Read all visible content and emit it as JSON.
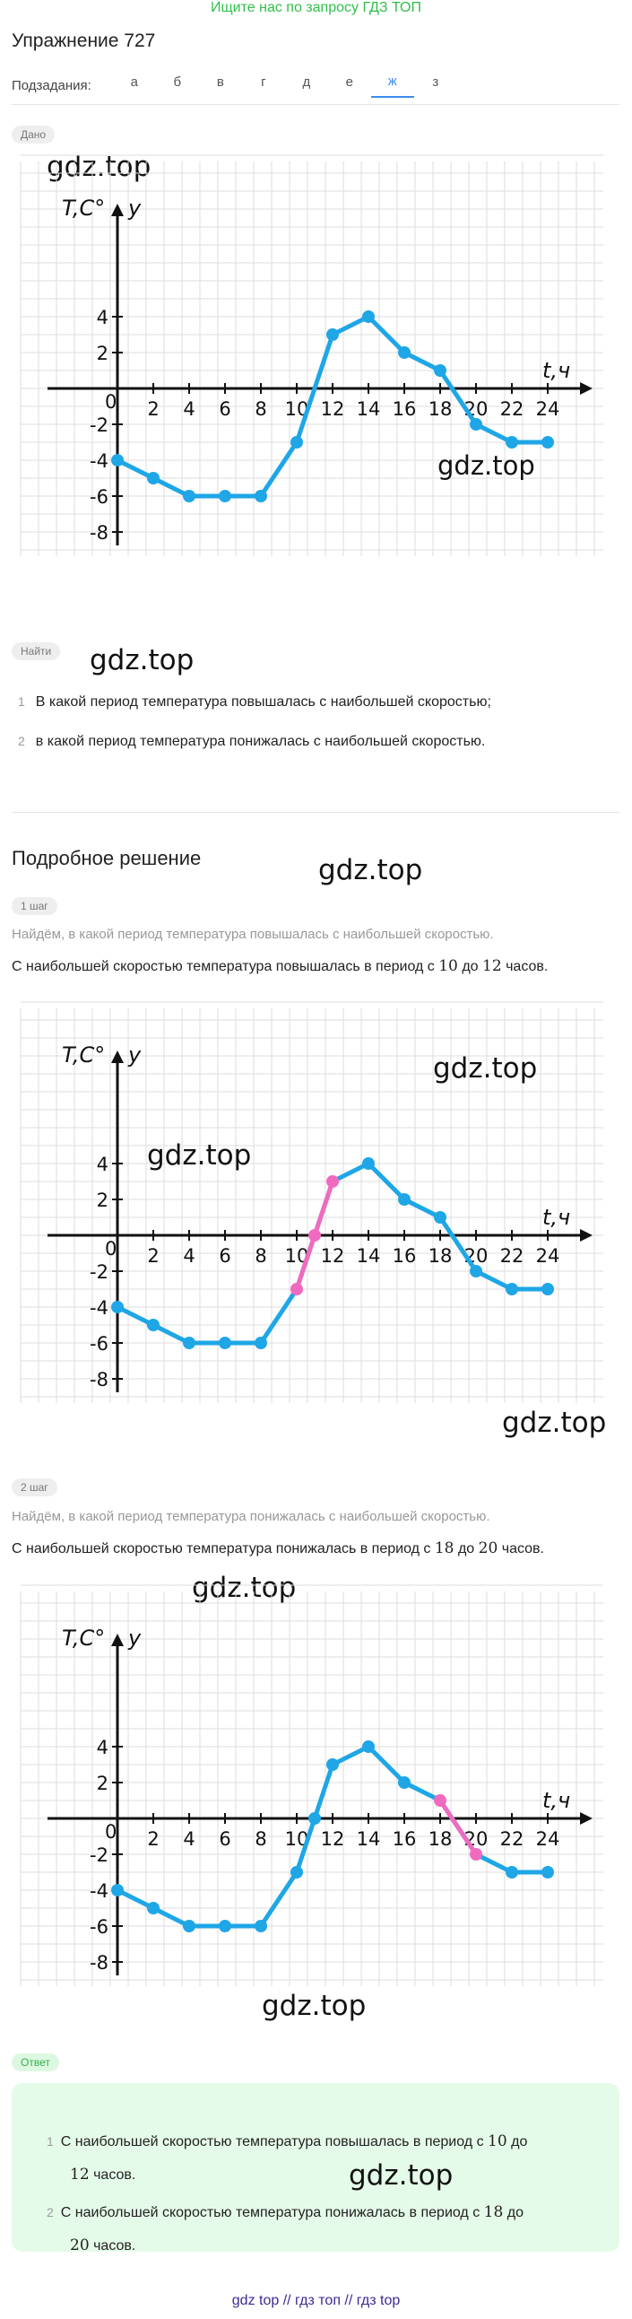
{
  "banner": "Ищите нас по запросу ГДЗ ТОП",
  "title": "Упражнение 727",
  "subtasks": {
    "label": "Подзадания:",
    "items": [
      "а",
      "б",
      "в",
      "г",
      "д",
      "е",
      "ж",
      "з"
    ],
    "active": "ж"
  },
  "given": {
    "pill": "Дано"
  },
  "find": {
    "pill": "Найти",
    "items": [
      {
        "n": "1",
        "text": "В какой период температура повышалась с наибольшей скоростью;"
      },
      {
        "n": "2",
        "text": "в какой период температура понижалась с наибольшей скоростью."
      }
    ]
  },
  "solution": {
    "title": "Подробное решение",
    "step1": {
      "pill": "1 шаг",
      "note": "Найдём, в какой период температура повышалась с наибольшей скоростью.",
      "statement_a": "С наибольшей скоростью температура повышалась в период с",
      "n1": "10",
      "mid": "до",
      "n2": "12",
      "tail": "часов."
    },
    "step2": {
      "pill": "2 шаг",
      "note": "Найдём, в какой период температура понижалась с наибольшей скоростью.",
      "statement_a": "С наибольшей скоростью температура понижалась в период с",
      "n1": "18",
      "mid": "до",
      "n2": "20",
      "tail": "часов."
    }
  },
  "answer": {
    "pill": "Ответ",
    "items": [
      {
        "n": "1",
        "text_a": "С наибольшей скоростью температура повышалась в период с",
        "n1": "10",
        "mid": "до",
        "n2": "12",
        "tail": "часов."
      },
      {
        "n": "2",
        "text_a": "С наибольшей скоростью температура понижалась в период с",
        "n1": "18",
        "mid": "до",
        "n2": "20",
        "tail": "часов."
      }
    ]
  },
  "watermark": "gdz.top",
  "footer": "gdz top // гдз топ // гдз top",
  "colors": {
    "line": "#1fa6e6",
    "highlight": "#f06bbf",
    "grid": "#dedede",
    "accent": "#3d8cf0",
    "green": "#2fbf4a"
  },
  "chart_data": [
    {
      "type": "line",
      "ylabel": "T,C°",
      "yname": "y",
      "xlabel": "t,ч",
      "x": [
        0,
        2,
        4,
        6,
        8,
        10,
        12,
        14,
        16,
        18,
        20,
        22,
        24
      ],
      "values": [
        -4,
        -5,
        -6,
        -6,
        -6,
        -3,
        3,
        4,
        2,
        1,
        -2,
        -3,
        -3
      ],
      "xticks": [
        "2",
        "4",
        "6",
        "8",
        "10",
        "12",
        "14",
        "16",
        "18",
        "20",
        "22",
        "24"
      ],
      "yticks": [
        "4",
        "2",
        "-2",
        "-4",
        "-6",
        "-8"
      ],
      "origin_label": "0",
      "xlim": [
        0,
        24
      ],
      "ylim": [
        -8,
        4
      ],
      "grid": true,
      "highlight": null
    },
    {
      "type": "line",
      "ylabel": "T,C°",
      "yname": "y",
      "xlabel": "t,ч",
      "x": [
        0,
        2,
        4,
        6,
        8,
        10,
        11,
        12,
        14,
        16,
        18,
        20,
        22,
        24
      ],
      "values": [
        -4,
        -5,
        -6,
        -6,
        -6,
        -3,
        0,
        3,
        4,
        2,
        1,
        -2,
        -3,
        -3
      ],
      "xticks": [
        "2",
        "4",
        "6",
        "8",
        "10",
        "12",
        "14",
        "16",
        "18",
        "20",
        "22",
        "24"
      ],
      "yticks": [
        "4",
        "2",
        "-2",
        "-4",
        "-6",
        "-8"
      ],
      "origin_label": "0",
      "xlim": [
        0,
        24
      ],
      "ylim": [
        -8,
        4
      ],
      "grid": true,
      "highlight": [
        10,
        12
      ]
    },
    {
      "type": "line",
      "ylabel": "T,C°",
      "yname": "y",
      "xlabel": "t,ч",
      "x": [
        0,
        2,
        4,
        6,
        8,
        10,
        11,
        12,
        14,
        16,
        18,
        20,
        22,
        24
      ],
      "values": [
        -4,
        -5,
        -6,
        -6,
        -6,
        -3,
        0,
        3,
        4,
        2,
        1,
        -2,
        -3,
        -3
      ],
      "xticks": [
        "2",
        "4",
        "6",
        "8",
        "10",
        "12",
        "14",
        "16",
        "18",
        "20",
        "22",
        "24"
      ],
      "yticks": [
        "4",
        "2",
        "-2",
        "-4",
        "-6",
        "-8"
      ],
      "origin_label": "0",
      "xlim": [
        0,
        24
      ],
      "ylim": [
        -8,
        4
      ],
      "grid": true,
      "highlight": [
        18,
        20
      ]
    }
  ]
}
